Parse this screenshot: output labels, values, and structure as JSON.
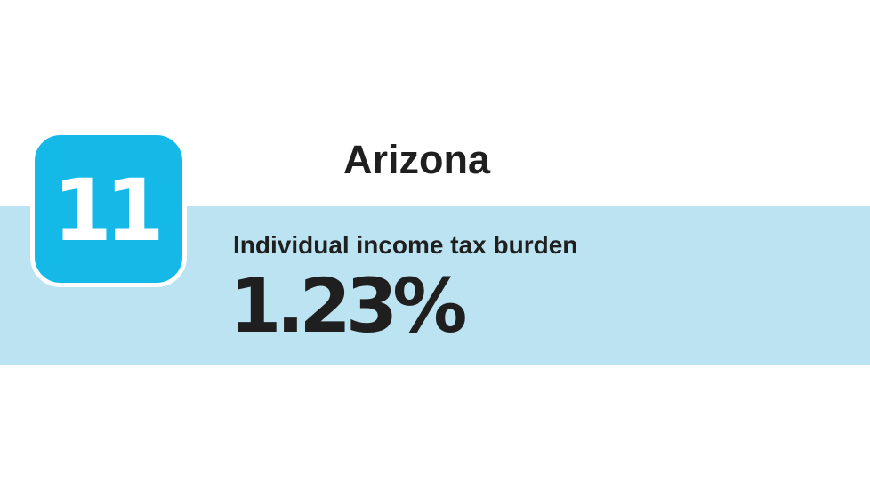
{
  "rank": "11",
  "state": "Arizona",
  "metric": {
    "label": "Individual income tax burden",
    "value": "1.23%"
  },
  "colors": {
    "badge": "#14b9e8",
    "band": "#bce3f2",
    "text": "#1f1f1f"
  }
}
